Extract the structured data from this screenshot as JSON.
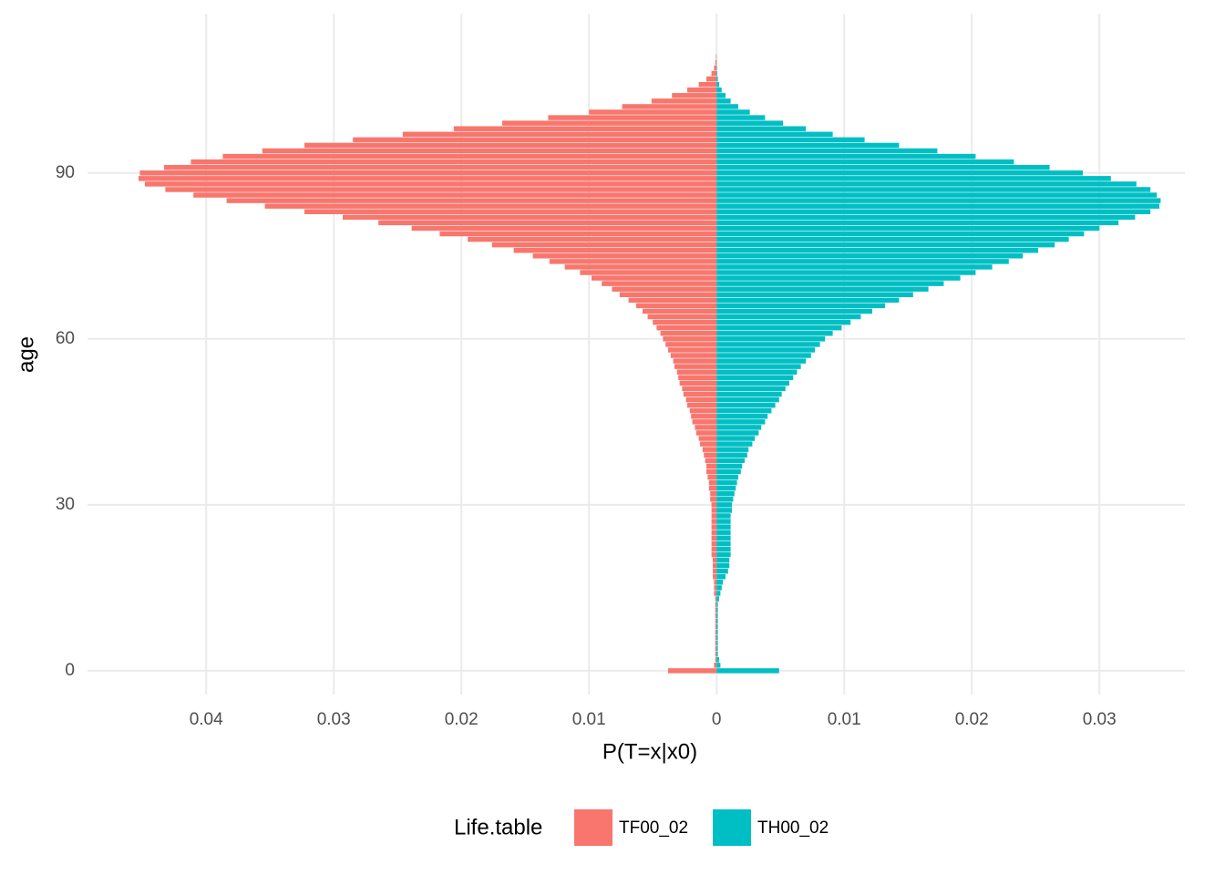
{
  "chart_data": {
    "type": "pyramid",
    "x_label": "P(T=x|x0)",
    "y_label": "age",
    "legend_title": "Life.table",
    "xlim": [
      -0.0493,
      0.0367
    ],
    "ylim": [
      -4.3,
      118.8
    ],
    "xticks": [
      {
        "value": -0.04,
        "label": "0.04"
      },
      {
        "value": -0.03,
        "label": "0.03"
      },
      {
        "value": -0.02,
        "label": "0.02"
      },
      {
        "value": -0.01,
        "label": "0.01"
      },
      0,
      0.01,
      0.02,
      0.03
    ],
    "yticks": [
      0,
      30,
      60,
      90
    ],
    "grid": true,
    "legend_position": "bottom",
    "y": [
      0,
      1,
      2,
      3,
      4,
      5,
      6,
      7,
      8,
      9,
      10,
      11,
      12,
      13,
      14,
      15,
      16,
      17,
      18,
      19,
      20,
      21,
      22,
      23,
      24,
      25,
      26,
      27,
      28,
      29,
      30,
      31,
      32,
      33,
      34,
      35,
      36,
      37,
      38,
      39,
      40,
      41,
      42,
      43,
      44,
      45,
      46,
      47,
      48,
      49,
      50,
      51,
      52,
      53,
      54,
      55,
      56,
      57,
      58,
      59,
      60,
      61,
      62,
      63,
      64,
      65,
      66,
      67,
      68,
      69,
      70,
      71,
      72,
      73,
      74,
      75,
      76,
      77,
      78,
      79,
      80,
      81,
      82,
      83,
      84,
      85,
      86,
      87,
      88,
      89,
      90,
      91,
      92,
      93,
      94,
      95,
      96,
      97,
      98,
      99,
      100,
      101,
      102,
      103,
      104,
      105,
      106,
      107,
      108,
      109,
      110,
      111
    ],
    "series": [
      {
        "name": "TF00_02",
        "color": "#F8766D",
        "values": [
          -0.0038,
          -0.0002,
          -0.0001,
          -0.0001,
          -0.0001,
          -0.0001,
          -0.0001,
          -0.0001,
          -0.0001,
          -0.0001,
          -0.0001,
          -0.0001,
          -0.0001,
          -0.0001,
          -0.0002,
          -0.0002,
          -0.0002,
          -0.0003,
          -0.0003,
          -0.0003,
          -0.0003,
          -0.0004,
          -0.0004,
          -0.0004,
          -0.0004,
          -0.0004,
          -0.0004,
          -0.0004,
          -0.0004,
          -0.0004,
          -0.0004,
          -0.0005,
          -0.0005,
          -0.0006,
          -0.0006,
          -0.0007,
          -0.0008,
          -0.0008,
          -0.0009,
          -0.001,
          -0.0011,
          -0.0013,
          -0.0014,
          -0.0016,
          -0.0017,
          -0.0019,
          -0.002,
          -0.0021,
          -0.0023,
          -0.0024,
          -0.0026,
          -0.0027,
          -0.0029,
          -0.003,
          -0.0031,
          -0.0033,
          -0.0034,
          -0.0036,
          -0.0038,
          -0.004,
          -0.0042,
          -0.0044,
          -0.0047,
          -0.005,
          -0.0054,
          -0.0058,
          -0.0063,
          -0.0069,
          -0.0076,
          -0.0082,
          -0.009,
          -0.0098,
          -0.0107,
          -0.0119,
          -0.0131,
          -0.0144,
          -0.0159,
          -0.0176,
          -0.0195,
          -0.0217,
          -0.0239,
          -0.0265,
          -0.0293,
          -0.0323,
          -0.0354,
          -0.0384,
          -0.041,
          -0.0432,
          -0.0448,
          -0.0453,
          -0.0452,
          -0.0433,
          -0.0412,
          -0.0387,
          -0.0356,
          -0.0323,
          -0.0285,
          -0.0246,
          -0.0206,
          -0.0168,
          -0.0132,
          -0.01,
          -0.0074,
          -0.0051,
          -0.0035,
          -0.0023,
          -0.0014,
          -0.0008,
          -0.0004,
          -0.0002,
          -0.0001,
          -5e-05
        ]
      },
      {
        "name": "TH00_02",
        "color": "#00BFC4",
        "values": [
          0.0049,
          0.0003,
          0.0002,
          0.0001,
          0.0001,
          0.0001,
          0.0001,
          0.0001,
          0.0001,
          0.0001,
          0.0001,
          0.0001,
          0.0001,
          0.0002,
          0.0003,
          0.0004,
          0.0005,
          0.0007,
          0.0009,
          0.001,
          0.001,
          0.0011,
          0.0011,
          0.0011,
          0.0011,
          0.0011,
          0.0011,
          0.0011,
          0.0011,
          0.0012,
          0.0012,
          0.0013,
          0.0014,
          0.0015,
          0.0016,
          0.0017,
          0.0019,
          0.002,
          0.0022,
          0.0024,
          0.0025,
          0.0028,
          0.003,
          0.0033,
          0.0035,
          0.0038,
          0.004,
          0.0043,
          0.0046,
          0.0049,
          0.0051,
          0.0054,
          0.0057,
          0.006,
          0.0063,
          0.0066,
          0.007,
          0.0074,
          0.0077,
          0.0081,
          0.0085,
          0.0091,
          0.0098,
          0.0105,
          0.0113,
          0.0122,
          0.0132,
          0.0143,
          0.0154,
          0.0166,
          0.0178,
          0.0191,
          0.0203,
          0.0216,
          0.0229,
          0.024,
          0.0252,
          0.0265,
          0.0276,
          0.0288,
          0.03,
          0.0315,
          0.0328,
          0.034,
          0.0347,
          0.0348,
          0.0345,
          0.034,
          0.0329,
          0.0309,
          0.0287,
          0.0261,
          0.0233,
          0.0203,
          0.0173,
          0.0143,
          0.0116,
          0.0091,
          0.007,
          0.0052,
          0.0038,
          0.0026,
          0.0017,
          0.0011,
          0.0007,
          0.0004,
          0.0002,
          0.0001,
          5e-05,
          3e-05,
          1e-05,
          0
        ]
      }
    ]
  }
}
